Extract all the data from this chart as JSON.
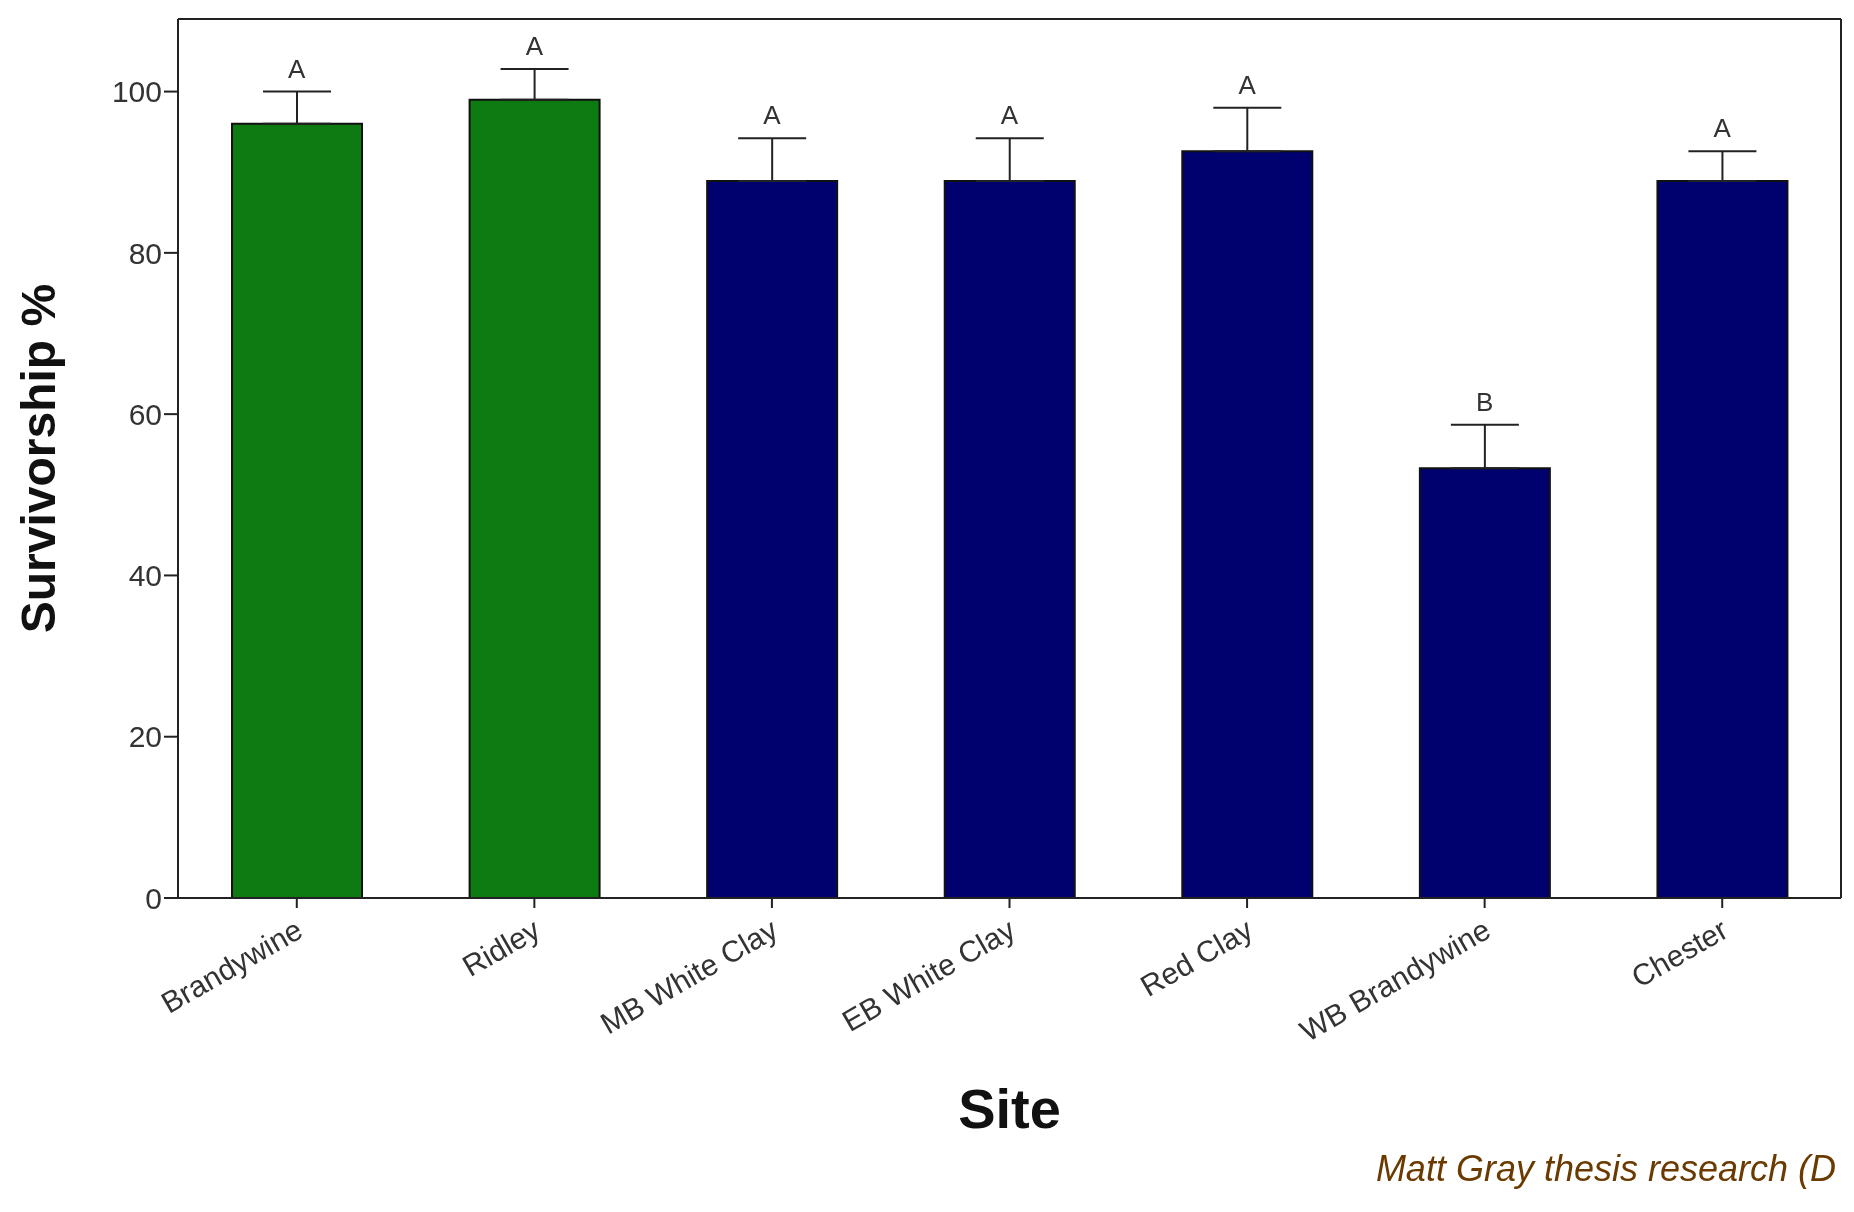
{
  "chart_data": {
    "type": "bar",
    "xlabel": "Site",
    "ylabel": "Survivorship %",
    "categories": [
      "Brandywine",
      "Ridley",
      "MB White Clay",
      "EB White Clay",
      "Red Clay",
      "WB Brandywine",
      "Chester"
    ],
    "values": [
      96,
      99,
      88.9,
      88.9,
      92.6,
      53.3,
      88.9
    ],
    "errors": [
      [
        96,
        100
      ],
      [
        99,
        102.8
      ],
      [
        88.9,
        94.2
      ],
      [
        88.9,
        94.2
      ],
      [
        92.6,
        98
      ],
      [
        53.3,
        58.7
      ],
      [
        88.9,
        92.6
      ]
    ],
    "colors": [
      "#0d7a12",
      "#0d7a12",
      "#00006e",
      "#00006e",
      "#00006e",
      "#00006e",
      "#00006e"
    ],
    "ylim": [
      0,
      109
    ],
    "yticks": [
      0,
      20,
      40,
      60,
      80,
      100
    ],
    "grid": false,
    "legend": false,
    "annotations": [
      {
        "text": "A",
        "x": "Brandywine",
        "y": 96
      },
      {
        "text": "A",
        "x": "Ridley",
        "y": 99
      },
      {
        "text": "A",
        "x": "MB White Clay",
        "y": 88.9
      },
      {
        "text": "A",
        "x": "EB White Clay",
        "y": 88.9
      },
      {
        "text": "A",
        "x": "Red Clay",
        "y": 92.6
      },
      {
        "text": "B",
        "x": "WB Brandywine",
        "y": 53.3
      },
      {
        "text": "A",
        "x": "Chester",
        "y": 88.9
      },
      "Matt Gray thesis research (D"
    ]
  }
}
